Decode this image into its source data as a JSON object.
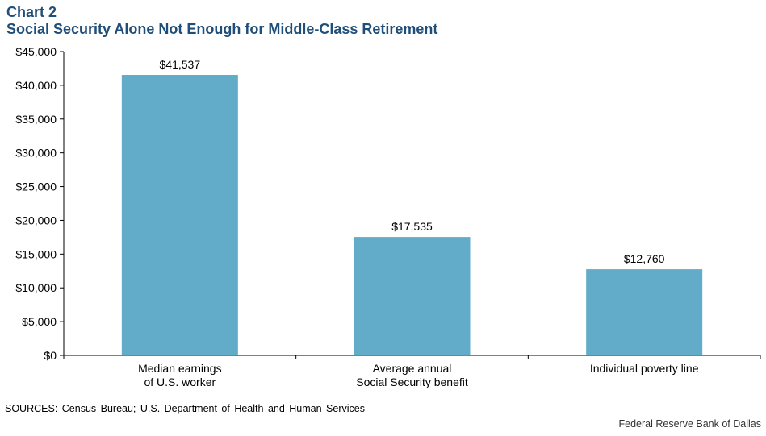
{
  "header": {
    "label": "Chart 2",
    "title": "Social Security Alone Not Enough for Middle-Class Retirement"
  },
  "footer": {
    "sources": "SOURCES: Census Bureau; U.S. Department of Health and Human Services",
    "credit": "Federal Reserve Bank of Dallas"
  },
  "colors": {
    "bar": "#62acc9",
    "title": "#1f4e79",
    "axis": "#000000"
  },
  "chart_data": {
    "type": "bar",
    "title": "Social Security Alone Not Enough for Middle-Class Retirement",
    "xlabel": "",
    "ylabel": "",
    "categories": [
      [
        "Median earnings",
        "of U.S. worker"
      ],
      [
        "Average annual",
        "Social Security benefit"
      ],
      [
        "Individual poverty line"
      ]
    ],
    "values": [
      41537,
      17535,
      12760
    ],
    "value_labels": [
      "$41,537",
      "$17,535",
      "$12,760"
    ],
    "ylim": [
      0,
      45000
    ],
    "yticks": [
      0,
      5000,
      10000,
      15000,
      20000,
      25000,
      30000,
      35000,
      40000,
      45000
    ],
    "ytick_labels": [
      "$0",
      "$5,000",
      "$10,000",
      "$15,000",
      "$20,000",
      "$25,000",
      "$30,000",
      "$35,000",
      "$40,000",
      "$45,000"
    ],
    "grid": false,
    "legend": "none"
  }
}
